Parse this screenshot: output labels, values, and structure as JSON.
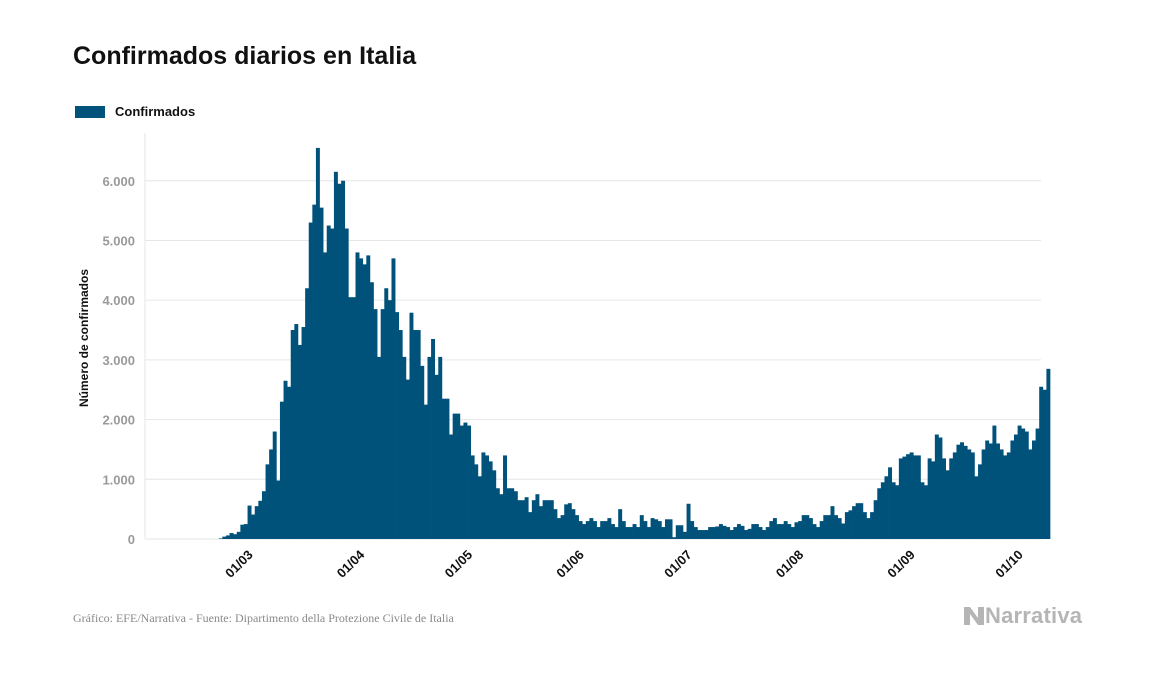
{
  "title": "Confirmados diarios en Italia",
  "legend": {
    "label": "Confirmados",
    "color": "#00527a"
  },
  "footer": {
    "source": "Gráfico: EFE/Narrativa - Fuente: Dipartimento della Protezione Civile de Italia"
  },
  "logo": {
    "text": "Narrativa",
    "icon": "narrativa-n-logo"
  },
  "colors": {
    "bar": "#00527a",
    "grid": "#e6e6e6",
    "tick_label": "#9a9a9a",
    "axis_title": "#111111"
  },
  "chart_data": {
    "type": "bar",
    "title": "Confirmados diarios en Italia",
    "ylabel": "Número de confirmados",
    "xlabel": "",
    "ylim": [
      0,
      6800
    ],
    "yticks": [
      0,
      1000,
      2000,
      3000,
      4000,
      5000,
      6000
    ],
    "ytick_labels": [
      "0",
      "1.000",
      "2.000",
      "3.000",
      "4.000",
      "5.000",
      "6.000"
    ],
    "xlim": [
      "2020-02-03",
      "2020-10-09"
    ],
    "xticks": [
      {
        "date": "2020-03-01",
        "label": "01/03"
      },
      {
        "date": "2020-04-01",
        "label": "01/04"
      },
      {
        "date": "2020-05-01",
        "label": "01/05"
      },
      {
        "date": "2020-06-01",
        "label": "01/06"
      },
      {
        "date": "2020-07-01",
        "label": "01/07"
      },
      {
        "date": "2020-08-01",
        "label": "01/08"
      },
      {
        "date": "2020-09-01",
        "label": "01/09"
      },
      {
        "date": "2020-10-01",
        "label": "01/10"
      }
    ],
    "grid": true,
    "legend_position": "top-left",
    "series": [
      {
        "name": "Confirmados",
        "start_date": "2020-02-24",
        "values": [
          10,
          40,
          60,
          100,
          80,
          120,
          240,
          250,
          560,
          410,
          550,
          640,
          800,
          1250,
          1500,
          1800,
          980,
          2300,
          2650,
          2550,
          3500,
          3600,
          3250,
          3550,
          4200,
          5300,
          5600,
          6550,
          5550,
          4800,
          5250,
          5200,
          6150,
          5950,
          6000,
          5200,
          4050,
          4050,
          4800,
          4700,
          4600,
          4750,
          4300,
          3850,
          3050,
          3850,
          4200,
          4000,
          4700,
          3800,
          3500,
          3050,
          2670,
          3790,
          3500,
          3500,
          2900,
          2250,
          3050,
          3350,
          2750,
          3050,
          2350,
          2350,
          1750,
          2100,
          2100,
          1900,
          1950,
          1900,
          1400,
          1250,
          1050,
          1450,
          1400,
          1300,
          1150,
          850,
          750,
          1400,
          850,
          850,
          800,
          650,
          650,
          700,
          450,
          650,
          750,
          550,
          650,
          650,
          650,
          500,
          350,
          400,
          580,
          600,
          500,
          400,
          300,
          250,
          300,
          350,
          300,
          200,
          300,
          300,
          350,
          250,
          200,
          500,
          300,
          200,
          200,
          250,
          200,
          400,
          300,
          200,
          350,
          330,
          300,
          200,
          330,
          330,
          30,
          230,
          230,
          120,
          590,
          300,
          200,
          150,
          150,
          150,
          200,
          200,
          210,
          250,
          220,
          200,
          150,
          200,
          250,
          220,
          150,
          170,
          250,
          250,
          200,
          150,
          200,
          300,
          350,
          250,
          250,
          300,
          250,
          200,
          280,
          300,
          400,
          400,
          350,
          250,
          200,
          300,
          400,
          400,
          550,
          400,
          350,
          260,
          450,
          480,
          550,
          600,
          600,
          450,
          350,
          450,
          650,
          850,
          950,
          1050,
          1200,
          950,
          900,
          1350,
          1380,
          1420,
          1450,
          1400,
          1400,
          950,
          900,
          1350,
          1300,
          1750,
          1700,
          1350,
          1150,
          1350,
          1450,
          1580,
          1620,
          1560,
          1500,
          1450,
          1050,
          1250,
          1500,
          1650,
          1600,
          1900,
          1600,
          1500,
          1400,
          1450,
          1650,
          1750,
          1900,
          1850,
          1800,
          1500,
          1650,
          1850,
          2550,
          2500,
          2850
        ]
      }
    ]
  }
}
